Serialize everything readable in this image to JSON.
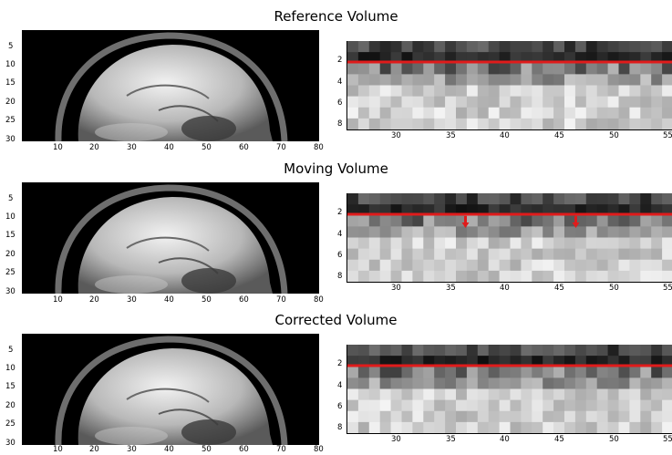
{
  "sections": [
    {
      "title": "Reference Volume",
      "left": {
        "yticks": [
          "5",
          "10",
          "15",
          "20",
          "25",
          "30"
        ],
        "xticks": [
          "10",
          "20",
          "30",
          "40",
          "50",
          "60",
          "70",
          "80"
        ]
      },
      "right": {
        "yticks": [
          "2",
          "4",
          "6",
          "8"
        ],
        "xticks": [
          "30",
          "35",
          "40",
          "45",
          "50",
          "55"
        ],
        "arrows": []
      }
    },
    {
      "title": "Moving Volume",
      "left": {
        "yticks": [
          "5",
          "10",
          "15",
          "20",
          "25",
          "30"
        ],
        "xticks": [
          "10",
          "20",
          "30",
          "40",
          "50",
          "60",
          "70",
          "80"
        ]
      },
      "right": {
        "yticks": [
          "2",
          "4",
          "6",
          "8"
        ],
        "xticks": [
          "30",
          "35",
          "40",
          "45",
          "50",
          "55"
        ],
        "arrows": [
          36.5,
          46.5
        ]
      }
    },
    {
      "title": "Corrected Volume",
      "left": {
        "yticks": [
          "5",
          "10",
          "15",
          "20",
          "25",
          "30"
        ],
        "xticks": [
          "10",
          "20",
          "30",
          "40",
          "50",
          "60",
          "70",
          "80"
        ]
      },
      "right": {
        "yticks": [
          "2",
          "4",
          "6",
          "8"
        ],
        "xticks": [
          "30",
          "35",
          "40",
          "45",
          "50",
          "55"
        ],
        "arrows": []
      }
    }
  ],
  "colors": {
    "reference_line": "#e01b1b",
    "arrow": "#e01b1b"
  }
}
